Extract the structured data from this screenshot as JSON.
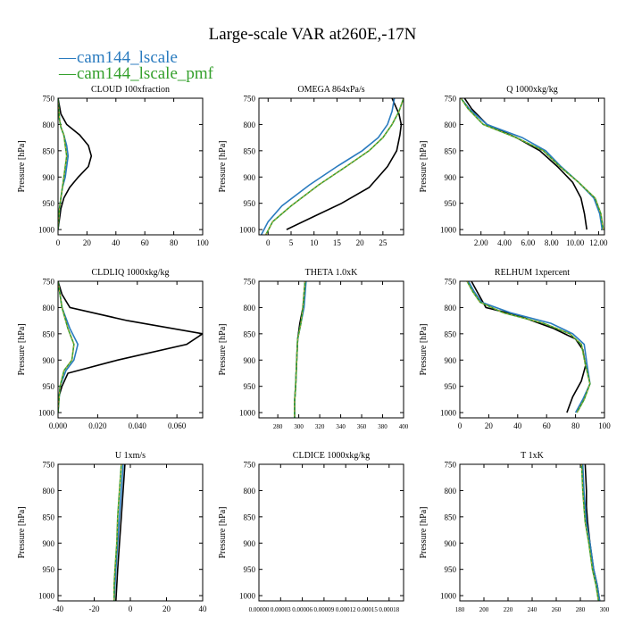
{
  "title": "Large-scale VAR at260E,-17N",
  "legend": [
    {
      "label": "cam144_lscale",
      "color": "#2a7bbf"
    },
    {
      "label": "cam144_lscale_pmf",
      "color": "#34a02c"
    }
  ],
  "colors": {
    "series_black": "#000000",
    "series_blue": "#2a7bbf",
    "series_green": "#34a02c",
    "series_green_dash": "#e8a33c"
  },
  "chart_data": [
    {
      "type": "line",
      "title": "CLOUD  100xfraction",
      "ylabel": "Pressure [hPa]",
      "xlim": [
        0,
        100
      ],
      "ylim": [
        1010,
        750
      ],
      "xticks": [
        "0",
        "20",
        "40",
        "60",
        "80",
        "100"
      ],
      "xtick_values": [
        0,
        20,
        40,
        60,
        80,
        100
      ],
      "yticks": [
        "750",
        "800",
        "850",
        "900",
        "950",
        "1000"
      ],
      "ytick_values": [
        750,
        800,
        850,
        900,
        950,
        1000
      ],
      "series": [
        {
          "color": "black",
          "x": [
            0,
            2,
            6,
            15,
            21,
            23,
            21,
            14,
            8,
            4,
            2,
            1,
            0
          ],
          "y": [
            750,
            780,
            800,
            820,
            840,
            860,
            880,
            900,
            920,
            940,
            960,
            980,
            1000
          ]
        },
        {
          "color": "blue",
          "x": [
            0,
            1,
            2,
            4,
            6,
            7,
            6,
            5,
            3,
            2,
            1,
            0
          ],
          "y": [
            750,
            790,
            805,
            820,
            840,
            860,
            880,
            900,
            920,
            940,
            960,
            1000
          ]
        },
        {
          "color": "green",
          "x": [
            0,
            1,
            2,
            4,
            5,
            6,
            5,
            4,
            3,
            2,
            1,
            0
          ],
          "y": [
            750,
            790,
            805,
            820,
            840,
            860,
            880,
            900,
            920,
            940,
            960,
            1000
          ]
        }
      ]
    },
    {
      "type": "line",
      "title": "OMEGA  864xPa/s",
      "ylabel": "Pressure [hPa]",
      "xlim": [
        -2,
        29.5
      ],
      "ylim": [
        1010,
        750
      ],
      "xticks": [
        "0",
        "5",
        "10",
        "15",
        "20",
        "25"
      ],
      "xtick_values": [
        0,
        5,
        10,
        15,
        20,
        25
      ],
      "yticks": [
        "750",
        "800",
        "850",
        "900",
        "950",
        "1000"
      ],
      "ytick_values": [
        750,
        800,
        850,
        900,
        950,
        1000
      ],
      "series": [
        {
          "color": "black",
          "x": [
            27,
            28.5,
            29,
            28.7,
            28,
            26,
            22,
            16,
            10,
            4
          ],
          "y": [
            750,
            780,
            800,
            820,
            850,
            880,
            920,
            950,
            975,
            1000
          ]
        },
        {
          "color": "blue",
          "x": [
            27.5,
            27,
            26,
            24,
            20.5,
            15,
            9,
            3,
            0,
            -1.5
          ],
          "y": [
            750,
            775,
            800,
            825,
            850,
            880,
            915,
            955,
            985,
            1010
          ]
        },
        {
          "color": "green",
          "x": [
            29.5,
            28.5,
            27,
            25,
            22,
            17,
            11,
            5,
            1,
            -0.5
          ],
          "y": [
            750,
            775,
            800,
            825,
            850,
            880,
            915,
            955,
            985,
            1010
          ]
        }
      ]
    },
    {
      "type": "line",
      "title": "Q  1000xkg/kg",
      "ylabel": "Pressure [hPa]",
      "xlim": [
        0.2,
        12.5
      ],
      "ylim": [
        1010,
        750
      ],
      "xticks": [
        "2.00",
        "4.00",
        "6.00",
        "8.00",
        "10.00",
        "12.00"
      ],
      "xtick_values": [
        2,
        4,
        6,
        8,
        10,
        12
      ],
      "yticks": [
        "750",
        "800",
        "850",
        "900",
        "950",
        "1000"
      ],
      "ytick_values": [
        750,
        800,
        850,
        900,
        950,
        1000
      ],
      "series": [
        {
          "color": "black",
          "x": [
            0.6,
            1.2,
            2.5,
            5,
            7,
            8.5,
            9.8,
            10.5,
            10.8,
            11
          ],
          "y": [
            750,
            770,
            800,
            825,
            850,
            880,
            910,
            940,
            970,
            1000
          ]
        },
        {
          "color": "blue",
          "x": [
            0.3,
            1,
            2.5,
            5.5,
            7.5,
            8.8,
            10.3,
            11.6,
            12.1,
            12.3
          ],
          "y": [
            750,
            770,
            800,
            825,
            850,
            880,
            910,
            940,
            970,
            1000
          ]
        },
        {
          "color": "green",
          "x": [
            0.3,
            0.9,
            2.2,
            5,
            7.3,
            8.7,
            10.3,
            11.7,
            12.2,
            12.4
          ],
          "y": [
            750,
            770,
            800,
            825,
            850,
            880,
            910,
            940,
            970,
            1000
          ]
        }
      ]
    },
    {
      "type": "line",
      "title": "CLDLIQ  1000xkg/kg",
      "ylabel": "Pressure [hPa]",
      "xlim": [
        0,
        0.073
      ],
      "ylim": [
        1010,
        750
      ],
      "xticks": [
        "0.000",
        "0.020",
        "0.040",
        "0.060"
      ],
      "xtick_values": [
        0,
        0.02,
        0.04,
        0.06
      ],
      "yticks": [
        "750",
        "800",
        "850",
        "900",
        "950",
        "1000"
      ],
      "ytick_values": [
        750,
        800,
        850,
        900,
        950,
        1000
      ],
      "series": [
        {
          "color": "black",
          "x": [
            0,
            0.002,
            0.006,
            0.035,
            0.073,
            0.065,
            0.03,
            0.005,
            0.002,
            0,
            0
          ],
          "y": [
            750,
            775,
            800,
            825,
            850,
            870,
            900,
            925,
            950,
            975,
            1000
          ]
        },
        {
          "color": "blue",
          "x": [
            0,
            0.002,
            0.006,
            0.01,
            0.008,
            0.004,
            0.001,
            0
          ],
          "y": [
            750,
            800,
            840,
            870,
            900,
            920,
            950,
            1000
          ]
        },
        {
          "color": "green",
          "x": [
            0,
            0.002,
            0.005,
            0.008,
            0.007,
            0.003,
            0.001,
            0
          ],
          "y": [
            750,
            800,
            840,
            870,
            900,
            920,
            950,
            1000
          ]
        }
      ]
    },
    {
      "type": "line",
      "title": "THETA  1.0xK",
      "ylabel": "Pressure [hPa]",
      "xlim": [
        262,
        400
      ],
      "ylim": [
        1010,
        750
      ],
      "xticks": [
        "280",
        "300",
        "320",
        "340",
        "360",
        "380",
        "400"
      ],
      "xtick_values": [
        280,
        300,
        320,
        340,
        360,
        380,
        400
      ],
      "yticks": [
        "750",
        "800",
        "850",
        "900",
        "950",
        "1000"
      ],
      "ytick_values": [
        750,
        800,
        850,
        900,
        950,
        1000
      ],
      "series": [
        {
          "color": "black",
          "x": [
            306,
            304,
            301,
            299,
            298,
            297,
            296,
            296
          ],
          "y": [
            750,
            800,
            830,
            860,
            900,
            950,
            980,
            1010
          ]
        },
        {
          "color": "blue",
          "x": [
            307,
            305,
            302,
            299,
            298,
            297,
            296,
            296
          ],
          "y": [
            750,
            800,
            830,
            860,
            900,
            950,
            980,
            1010
          ]
        },
        {
          "color": "green",
          "x": [
            306,
            304,
            302,
            299,
            298,
            297,
            296,
            296
          ],
          "y": [
            750,
            800,
            830,
            860,
            900,
            950,
            980,
            1010
          ]
        }
      ]
    },
    {
      "type": "line",
      "title": "RELHUM  1xpercent",
      "ylabel": "Pressure [hPa]",
      "xlim": [
        0,
        100
      ],
      "ylim": [
        1010,
        750
      ],
      "xticks": [
        "0",
        "20",
        "40",
        "60",
        "80",
        "100"
      ],
      "xtick_values": [
        0,
        20,
        40,
        60,
        80,
        100
      ],
      "yticks": [
        "750",
        "800",
        "850",
        "900",
        "950",
        "1000"
      ],
      "ytick_values": [
        750,
        800,
        850,
        900,
        950,
        1000
      ],
      "series": [
        {
          "color": "black",
          "x": [
            8,
            12,
            18,
            40,
            65,
            80,
            85,
            87,
            84,
            78,
            74
          ],
          "y": [
            750,
            770,
            800,
            815,
            840,
            860,
            880,
            910,
            940,
            970,
            1000
          ]
        },
        {
          "color": "blue",
          "x": [
            6,
            10,
            15,
            35,
            63,
            78,
            86,
            88,
            90,
            85,
            80
          ],
          "y": [
            750,
            770,
            790,
            810,
            830,
            850,
            870,
            910,
            945,
            975,
            1000
          ]
        },
        {
          "color": "green",
          "x": [
            5,
            9,
            14,
            30,
            58,
            76,
            84,
            87,
            90,
            86,
            81
          ],
          "y": [
            750,
            770,
            790,
            810,
            830,
            850,
            870,
            910,
            945,
            975,
            1000
          ]
        }
      ]
    },
    {
      "type": "line",
      "title": "U  1xm/s",
      "ylabel": "Pressure [hPa]",
      "xlim": [
        -40,
        40
      ],
      "ylim": [
        1010,
        750
      ],
      "xticks": [
        "-40",
        "-20",
        "0",
        "20",
        "40"
      ],
      "xtick_values": [
        -40,
        -20,
        0,
        20,
        40
      ],
      "yticks": [
        "750",
        "800",
        "850",
        "900",
        "950",
        "1000"
      ],
      "ytick_values": [
        750,
        800,
        850,
        900,
        950,
        1000
      ],
      "series": [
        {
          "color": "black",
          "x": [
            -3,
            -4,
            -5,
            -6,
            -7,
            -7.5,
            -8
          ],
          "y": [
            750,
            800,
            850,
            900,
            950,
            980,
            1010
          ]
        },
        {
          "color": "blue",
          "x": [
            -4,
            -5,
            -6,
            -7,
            -8,
            -8.5,
            -9
          ],
          "y": [
            750,
            800,
            850,
            900,
            950,
            980,
            1010
          ]
        },
        {
          "color": "green",
          "x": [
            -5,
            -6,
            -7,
            -7.5,
            -8.5,
            -9,
            -9
          ],
          "y": [
            750,
            800,
            850,
            900,
            950,
            980,
            1010
          ]
        }
      ]
    },
    {
      "type": "line",
      "title": "CLDICE  1000xkg/kg",
      "ylabel": "Pressure [hPa]",
      "xlim": [
        0,
        0.0002
      ],
      "ylim": [
        1010,
        750
      ],
      "xticks": [
        "0.00000",
        "0.00003",
        "0.00006",
        "0.00009",
        "0.00012",
        "0.00015",
        "0.00018"
      ],
      "xtick_values": [
        0,
        3e-05,
        6e-05,
        9e-05,
        0.00012,
        0.00015,
        0.00018
      ],
      "yticks": [
        "750",
        "800",
        "850",
        "900",
        "950",
        "1000"
      ],
      "ytick_values": [
        750,
        800,
        850,
        900,
        950,
        1000
      ],
      "series": []
    },
    {
      "type": "line",
      "title": "T  1xK",
      "ylabel": "Pressure [hPa]",
      "xlim": [
        180,
        300
      ],
      "ylim": [
        1010,
        750
      ],
      "xticks": [
        "180",
        "200",
        "220",
        "240",
        "260",
        "280",
        "300"
      ],
      "xtick_values": [
        180,
        200,
        220,
        240,
        260,
        280,
        300
      ],
      "yticks": [
        "750",
        "800",
        "850",
        "900",
        "950",
        "1000"
      ],
      "ytick_values": [
        750,
        800,
        850,
        900,
        950,
        1000
      ],
      "series": [
        {
          "color": "black",
          "x": [
            284,
            285,
            285,
            286,
            288,
            291,
            294,
            296
          ],
          "y": [
            750,
            800,
            830,
            860,
            900,
            950,
            980,
            1010
          ]
        },
        {
          "color": "blue",
          "x": [
            282,
            283,
            284,
            285,
            288,
            291,
            294,
            296
          ],
          "y": [
            750,
            800,
            830,
            860,
            900,
            950,
            980,
            1010
          ]
        },
        {
          "color": "green",
          "x": [
            281,
            282,
            283,
            284,
            287,
            290,
            293,
            295
          ],
          "y": [
            750,
            800,
            830,
            860,
            900,
            950,
            980,
            1010
          ]
        }
      ]
    }
  ]
}
